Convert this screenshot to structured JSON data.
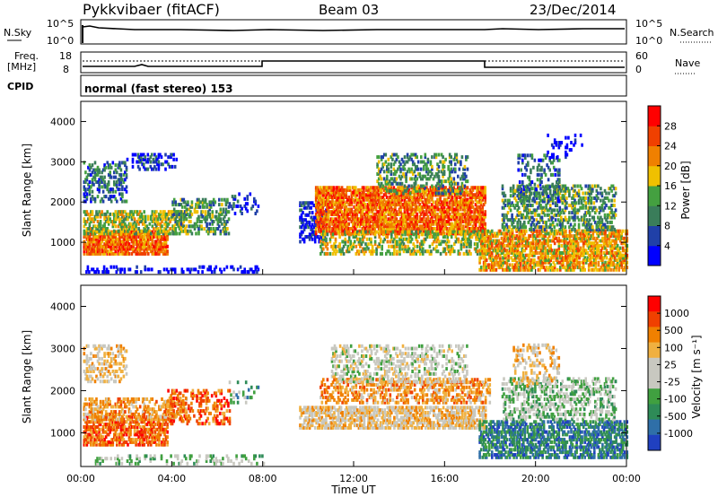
{
  "header": {
    "title": "Pykkvibaer (fitACF)",
    "beam": "Beam 03",
    "date": "23/Dec/2014"
  },
  "panels": {
    "nsky": {
      "left_label": "N.Sky",
      "left_ticks": [
        "10^5",
        "10^0"
      ],
      "right_ticks": [
        "10^5",
        "10^0"
      ],
      "right_label": "N.Search"
    },
    "freq": {
      "left_label": "Freq.",
      "left_unit": "[MHz]",
      "left_ticks": [
        "18",
        "8"
      ],
      "right_ticks": [
        "60",
        "0"
      ],
      "right_label": "Nave"
    },
    "cpid": {
      "label": "CPID",
      "mode_text": "normal (fast stereo) 153"
    }
  },
  "colors": {
    "power_scale": [
      "#0000ff",
      "#2040a8",
      "#3a7d5a",
      "#44a040",
      "#f0c000",
      "#f08000",
      "#f04000",
      "#ff0000"
    ],
    "velocity_scale": [
      "#ff0000",
      "#f04000",
      "#f08000",
      "#f0b040",
      "#c8c8c0",
      "#c8c8c0",
      "#40a040",
      "#2e8b57",
      "#2f6fa8",
      "#2040c0"
    ]
  },
  "chart_data": [
    {
      "type": "heatmap",
      "name": "power",
      "ylabel": "Slant Range [km]",
      "y_ticks": [
        "1000",
        "2000",
        "3000",
        "4000"
      ],
      "ylim": [
        200,
        4500
      ],
      "xlim_hours": [
        0,
        24
      ],
      "colorbar_label": "Power [dB]",
      "colorbar_ticks": [
        "4",
        "8",
        "12",
        "16",
        "20",
        "24",
        "28"
      ],
      "colorbar_range": [
        0,
        30
      ]
    },
    {
      "type": "heatmap",
      "name": "velocity",
      "ylabel": "Slant Range [km]",
      "y_ticks": [
        "1000",
        "2000",
        "3000",
        "4000"
      ],
      "ylim": [
        200,
        4500
      ],
      "xlim_hours": [
        0,
        24
      ],
      "xlabel": "Time UT",
      "x_ticks": [
        "00:00",
        "04:00",
        "08:00",
        "12:00",
        "16:00",
        "20:00",
        "00:00"
      ],
      "colorbar_label": "Velocity [m s⁻¹]",
      "colorbar_ticks": [
        "1000",
        "500",
        "100",
        "25",
        "-25",
        "-100",
        "-500",
        "-1000"
      ]
    }
  ]
}
